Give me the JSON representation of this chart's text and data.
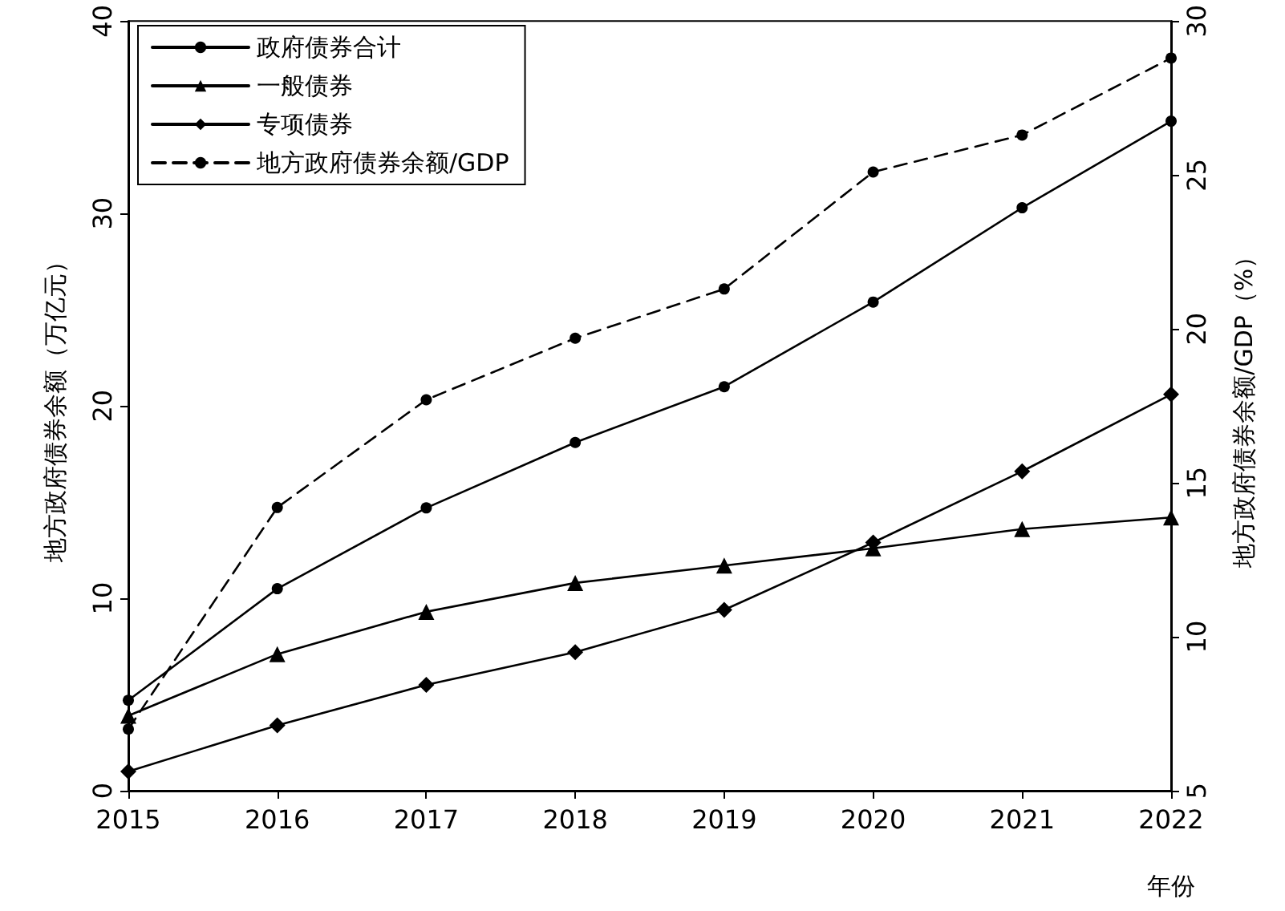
{
  "chart_data": {
    "type": "line",
    "categories": [
      "2015",
      "2016",
      "2017",
      "2018",
      "2019",
      "2020",
      "2021",
      "2022"
    ],
    "xlabel": "年份",
    "ylabel": "地方政府债券余额（万亿元）",
    "y2label": "地方政府债券余额/GDP（%）",
    "ylim": [
      0,
      40
    ],
    "yticks": [
      0,
      10,
      20,
      30,
      40
    ],
    "y2lim": [
      5,
      30
    ],
    "y2ticks": [
      5,
      10,
      15,
      20,
      25,
      30
    ],
    "legend": "top left",
    "grid": false,
    "series": [
      {
        "name": "政府债券合计",
        "color": "#000000",
        "marker": "circle",
        "line_style": "solid",
        "values": [
          4.7,
          10.5,
          14.7,
          18.1,
          21.0,
          25.4,
          30.3,
          34.8
        ]
      },
      {
        "name": "一般债券",
        "color": "#000000",
        "marker": "triangle",
        "line_style": "solid",
        "values": [
          3.9,
          7.1,
          9.3,
          10.8,
          11.7,
          12.6,
          13.6,
          14.2
        ]
      },
      {
        "name": "专项债券",
        "color": "#000000",
        "marker": "diamond",
        "line_style": "solid",
        "values": [
          1.0,
          3.4,
          5.5,
          7.2,
          9.4,
          12.9,
          16.6,
          20.6
        ]
      },
      {
        "name": "地方政府债券余额/GDP",
        "color": "#000000",
        "marker": "circle",
        "line_style": "dashed",
        "axis": "y2",
        "values": [
          7.0,
          14.2,
          17.7,
          19.7,
          21.3,
          25.1,
          26.3,
          28.8
        ]
      }
    ]
  }
}
